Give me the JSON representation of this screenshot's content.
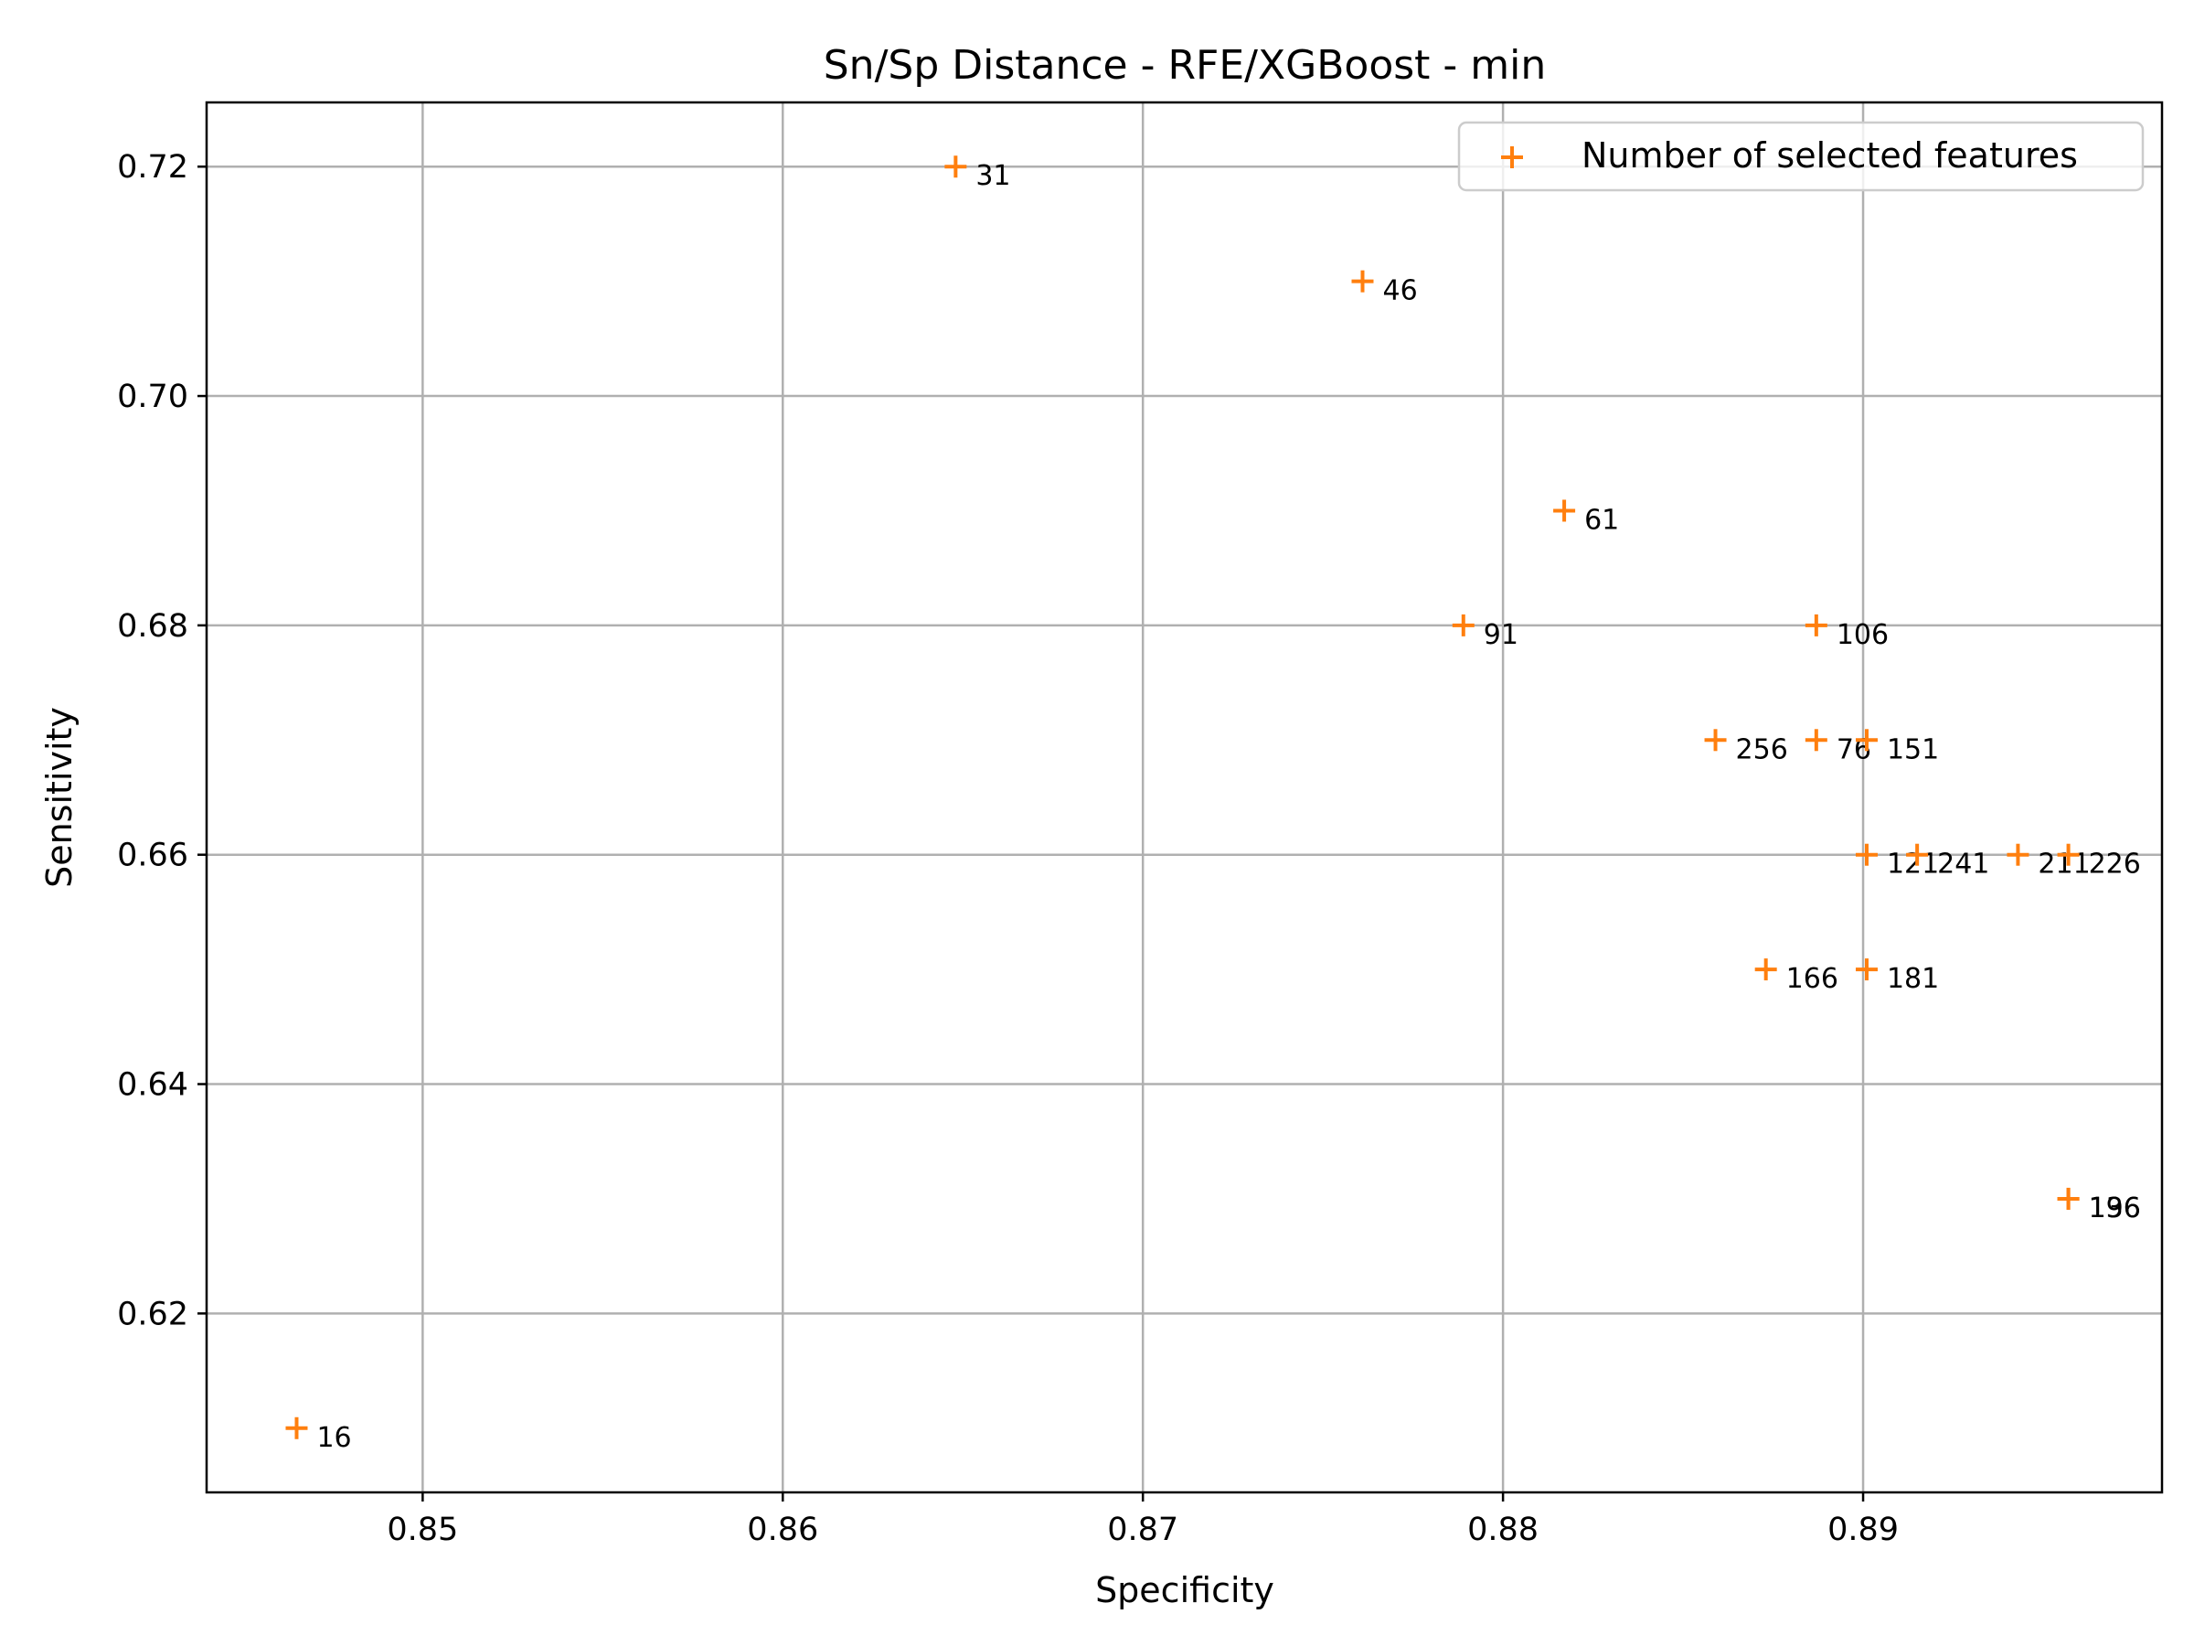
{
  "chart_data": {
    "type": "scatter",
    "title": "Sn/Sp Distance - RFE/XGBoost - min",
    "xlabel": "Specificity",
    "ylabel": "Sensitivity",
    "xlim": [
      0.844,
      0.8983
    ],
    "ylim": [
      0.6044,
      0.7256
    ],
    "xticks": [
      0.85,
      0.86,
      0.87,
      0.88,
      0.89
    ],
    "xtick_labels": [
      "0.85",
      "0.86",
      "0.87",
      "0.88",
      "0.89"
    ],
    "yticks": [
      0.62,
      0.64,
      0.66,
      0.68,
      0.7,
      0.72
    ],
    "ytick_labels": [
      "0.62",
      "0.64",
      "0.66",
      "0.68",
      "0.70",
      "0.72"
    ],
    "grid": true,
    "legend_position": "top-right",
    "marker": "+",
    "color": "#ff7f0e",
    "series": [
      {
        "name": "Number of selected features",
        "points": [
          {
            "x": 0.8465,
            "y": 0.61,
            "label": "16"
          },
          {
            "x": 0.8648,
            "y": 0.72,
            "label": "31"
          },
          {
            "x": 0.8761,
            "y": 0.71,
            "label": "46"
          },
          {
            "x": 0.8817,
            "y": 0.69,
            "label": "61"
          },
          {
            "x": 0.8887,
            "y": 0.67,
            "label": "76"
          },
          {
            "x": 0.8789,
            "y": 0.68,
            "label": "91"
          },
          {
            "x": 0.8887,
            "y": 0.68,
            "label": "106"
          },
          {
            "x": 0.8901,
            "y": 0.66,
            "label": "121"
          },
          {
            "x": 0.8957,
            "y": 0.63,
            "label": "136"
          },
          {
            "x": 0.8901,
            "y": 0.67,
            "label": "151"
          },
          {
            "x": 0.8873,
            "y": 0.65,
            "label": "166"
          },
          {
            "x": 0.8901,
            "y": 0.65,
            "label": "181"
          },
          {
            "x": 0.8957,
            "y": 0.63,
            "label": "196"
          },
          {
            "x": 0.8943,
            "y": 0.66,
            "label": "211"
          },
          {
            "x": 0.8957,
            "y": 0.66,
            "label": "226"
          },
          {
            "x": 0.8915,
            "y": 0.66,
            "label": "241"
          },
          {
            "x": 0.8859,
            "y": 0.67,
            "label": "256"
          }
        ]
      }
    ]
  }
}
